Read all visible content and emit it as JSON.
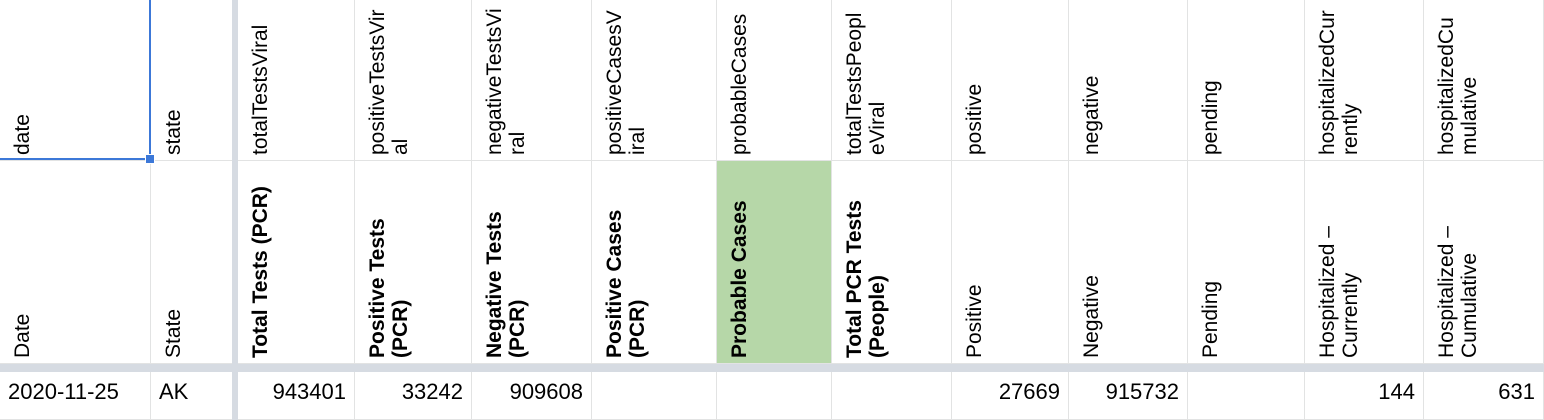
{
  "sheet": {
    "accent_color": "#3c78d8",
    "highlight_color": "#b6d7a8",
    "columns": [
      {
        "key": "date",
        "wide": false
      },
      {
        "key": "state",
        "wide": false
      }
    ],
    "header_row1": [
      "date",
      "state",
      "totalTestsViral",
      "positiveTestsViral",
      "negativeTestsViral",
      "positiveCasesViral",
      "probableCases",
      "totalTestsPeopleViral",
      "positive",
      "negative",
      "pending",
      "hospitalizedCurrently",
      "hospitalizedCumulative"
    ],
    "header_row2": [
      "Date",
      "State",
      "Total Tests (PCR)",
      "Positive Tests (PCR)",
      "Negative Tests (PCR)",
      "Positive Cases (PCR)",
      "Probable Cases",
      "Total PCR Tests (People)",
      "Positive",
      "Negative",
      "Pending",
      "Hospitalized – Currently",
      "Hospitalized – Cumulative"
    ],
    "data_row": [
      "2020-11-25",
      "AK",
      "943401",
      "33242",
      "909608",
      "",
      "",
      "",
      "27669",
      "915732",
      "",
      "144",
      "631"
    ]
  }
}
